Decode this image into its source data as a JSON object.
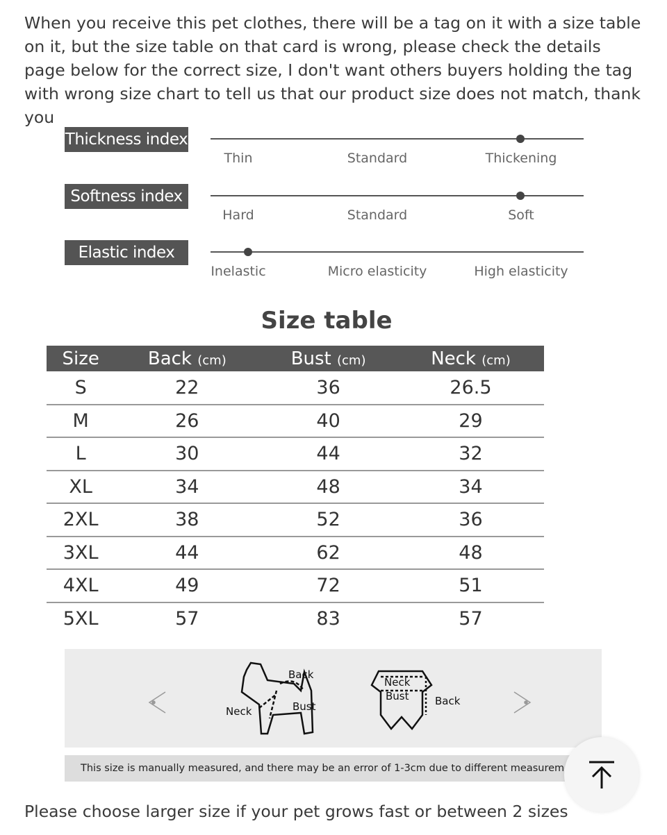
{
  "intro_text": "When you receive this pet clothes, there will be a tag on it with a size table on it, but the size table on that card is wrong, please check the details page below for the correct size, I don't want others buyers holding the tag with wrong size chart to tell us that our product size does not match, thank you",
  "indices": [
    {
      "label": "Thickness index",
      "options": [
        "Thin",
        "Standard",
        "Thickening"
      ],
      "level": 0.83
    },
    {
      "label": "Softness index",
      "options": [
        "Hard",
        "Standard",
        "Soft"
      ],
      "level": 0.83
    },
    {
      "label": "Elastic index",
      "options": [
        "Inelastic",
        "Micro elasticity",
        "High elasticity"
      ],
      "level": 0.1
    }
  ],
  "size_table": {
    "title": "Size table",
    "headers": [
      {
        "name": "Size",
        "unit": ""
      },
      {
        "name": "Back",
        "unit": "(cm)"
      },
      {
        "name": "Bust",
        "unit": "(cm)"
      },
      {
        "name": "Neck",
        "unit": "(cm)"
      }
    ],
    "rows": [
      [
        "S",
        "22",
        "36",
        "26.5"
      ],
      [
        "M",
        "26",
        "40",
        "29"
      ],
      [
        "L",
        "30",
        "44",
        "32"
      ],
      [
        "XL",
        "34",
        "48",
        "34"
      ],
      [
        "2XL",
        "38",
        "52",
        "36"
      ],
      [
        "3XL",
        "44",
        "62",
        "48"
      ],
      [
        "4XL",
        "49",
        "72",
        "51"
      ],
      [
        "5XL",
        "57",
        "83",
        "57"
      ]
    ]
  },
  "diagram": {
    "dog_labels": [
      "Back",
      "Neck",
      "Bust"
    ],
    "garment_labels": [
      "Neck",
      "Bust",
      "Back"
    ]
  },
  "note": "This size is manually measured, and there may be an error of 1-3cm due to different measurement met",
  "footer_text": "Please choose larger size if your pet grows fast or between 2 sizes",
  "scroll_top_icon": "arrow-up-to-top-icon"
}
